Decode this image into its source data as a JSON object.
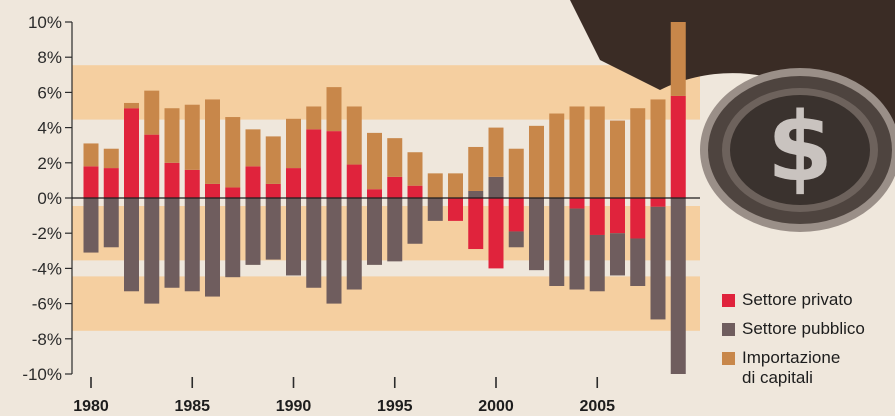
{
  "chart_data": {
    "type": "bar",
    "stacked": true,
    "years": [
      1980,
      1981,
      1982,
      1983,
      1984,
      1985,
      1986,
      1987,
      1988,
      1989,
      1990,
      1991,
      1992,
      1993,
      1994,
      1995,
      1996,
      1997,
      1998,
      1999,
      2000,
      2001,
      2002,
      2003,
      2004,
      2005,
      2006,
      2007,
      2008,
      2009
    ],
    "x_tick_labels": [
      "1980",
      "1985",
      "1990",
      "1995",
      "2000",
      "2005"
    ],
    "y_tick_labels": [
      "10%",
      "8%",
      "6%",
      "4%",
      "2%",
      "0%",
      "-2%",
      "-4%",
      "-6%",
      "-8%",
      "-10%"
    ],
    "ylim": [
      -10,
      10
    ],
    "series": [
      {
        "name": "Settore privato",
        "color": "#e0233c",
        "values": [
          1.8,
          1.7,
          5.1,
          3.6,
          2.0,
          1.6,
          0.8,
          0.6,
          1.8,
          0.8,
          1.7,
          3.9,
          3.8,
          1.9,
          0.5,
          1.2,
          0.7,
          0,
          -1.3,
          -2.9,
          -4.0,
          -1.9,
          0,
          0,
          -0.6,
          -2.1,
          -2.0,
          -2.3,
          -0.5,
          5.8
        ]
      },
      {
        "name": "Settore pubblico",
        "color": "#6f5d5e",
        "values": [
          -3.1,
          -2.8,
          -5.3,
          -6.0,
          -5.1,
          -5.3,
          -5.6,
          -4.5,
          -3.8,
          -3.5,
          -4.4,
          -5.1,
          -6.0,
          -5.2,
          -3.8,
          -3.6,
          -2.6,
          -1.3,
          0,
          0.4,
          1.2,
          -0.9,
          -4.1,
          -5.0,
          -4.6,
          -3.2,
          -2.4,
          -2.7,
          -6.4,
          -10.0
        ]
      },
      {
        "name": "Importazione di capitali",
        "color": "#c8874a",
        "values": [
          1.3,
          1.1,
          0.3,
          2.5,
          3.1,
          3.7,
          4.8,
          4.0,
          2.1,
          2.7,
          2.8,
          1.3,
          2.5,
          3.3,
          3.2,
          2.2,
          1.9,
          1.4,
          1.4,
          2.5,
          2.8,
          2.8,
          4.1,
          4.8,
          5.2,
          5.2,
          4.4,
          5.1,
          5.6,
          4.2
        ]
      }
    ],
    "grid": false,
    "legend_position": "bottom-right"
  },
  "legend": {
    "items": [
      {
        "label": "Settore privato",
        "color": "#e0233c"
      },
      {
        "label": "Settore pubblico",
        "color": "#6f5d5e"
      },
      {
        "label": "Importazione",
        "label2": "di capitali",
        "color": "#c8874a"
      }
    ]
  },
  "colors": {
    "band": "#f5cfa0",
    "background": "#efe7dc"
  }
}
